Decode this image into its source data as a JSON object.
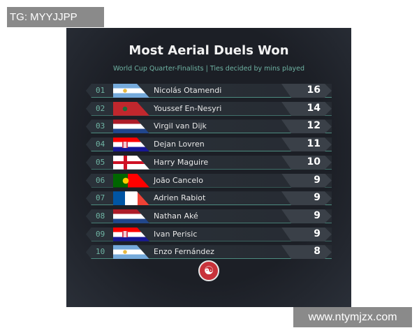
{
  "watermarks": {
    "top": "TG: MYYJJPP",
    "bottom": "www.ntymjzx.com"
  },
  "title": "Most Aerial Duels Won",
  "subtitle": "World Cup Quarter-Finalists | Ties decided by mins played",
  "rows": [
    {
      "rank": "01",
      "flag": "argentina",
      "name": "Nicolás Otamendi",
      "value": "16"
    },
    {
      "rank": "02",
      "flag": "morocco",
      "name": "Youssef En-Nesyri",
      "value": "14"
    },
    {
      "rank": "03",
      "flag": "netherlands",
      "name": "Virgil van Dijk",
      "value": "12"
    },
    {
      "rank": "04",
      "flag": "croatia",
      "name": "Dejan Lovren",
      "value": "11"
    },
    {
      "rank": "05",
      "flag": "england",
      "name": "Harry Maguire",
      "value": "10"
    },
    {
      "rank": "06",
      "flag": "portugal",
      "name": "João Cancelo",
      "value": "9"
    },
    {
      "rank": "07",
      "flag": "france",
      "name": "Adrien Rabiot",
      "value": "9"
    },
    {
      "rank": "08",
      "flag": "netherlands",
      "name": "Nathan Aké",
      "value": "9"
    },
    {
      "rank": "09",
      "flag": "croatia",
      "name": "Ivan Perisic",
      "value": "9"
    },
    {
      "rank": "10",
      "flag": "argentina",
      "name": "Enzo Fernández",
      "value": "8"
    }
  ],
  "logo_icon": "brand-logo-icon"
}
